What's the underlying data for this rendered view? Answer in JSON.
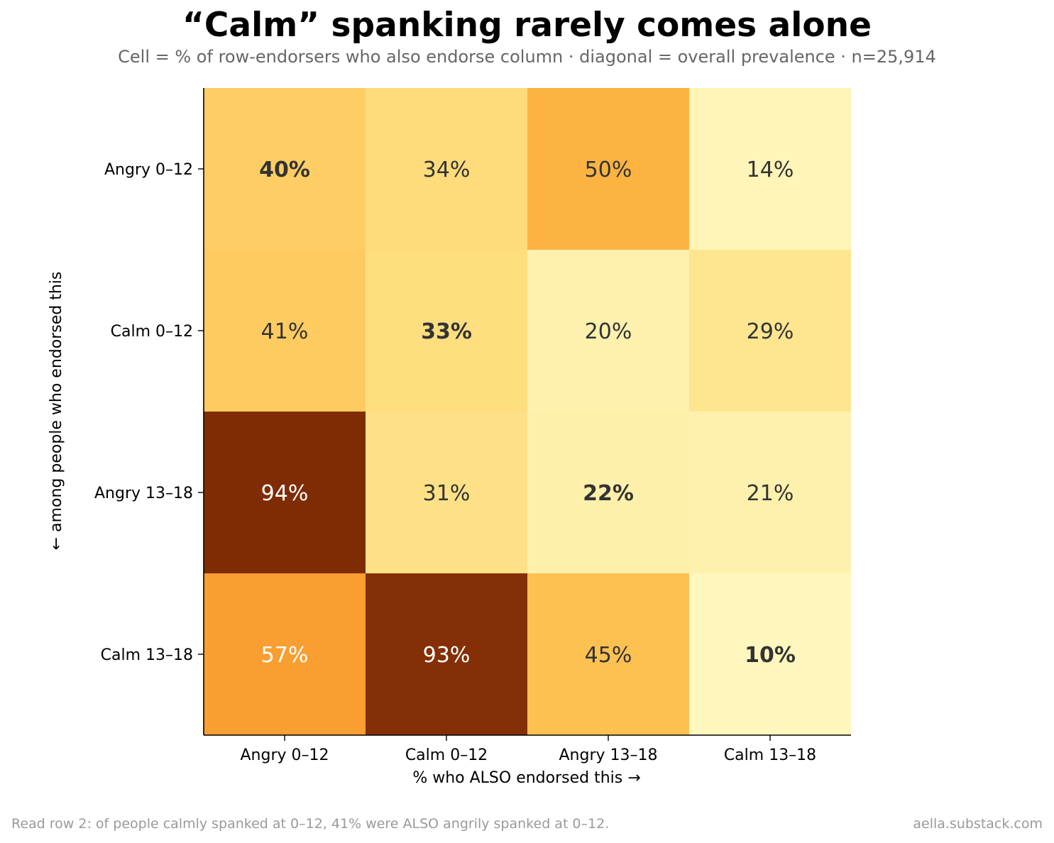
{
  "header": {
    "title": "“Calm” spanking rarely comes alone",
    "subtitle": "Cell = % of row-endorsers who also endorse column · diagonal = overall prevalence · n=25,914"
  },
  "footer": {
    "note": "Read row 2: of people calmly spanked at 0–12, 41% were ALSO angrily spanked at 0–12.",
    "credit": "aella.substack.com"
  },
  "chart_data": {
    "type": "heatmap",
    "title": "“Calm” spanking rarely comes alone",
    "subtitle": "Cell = % of row-endorsers who also endorse column · diagonal = overall prevalence · n=25,914",
    "xlabel": "% who ALSO endorsed this →",
    "ylabel": "← among people who endorsed this",
    "x_categories": [
      "Angry 0–12",
      "Calm 0–12",
      "Angry 13–18",
      "Calm 13–18"
    ],
    "y_categories": [
      "Angry 0–12",
      "Calm 0–12",
      "Angry 13–18",
      "Calm 13–18"
    ],
    "values": [
      [
        40,
        34,
        50,
        14
      ],
      [
        41,
        33,
        20,
        29
      ],
      [
        94,
        31,
        22,
        21
      ],
      [
        57,
        93,
        45,
        10
      ]
    ],
    "labels": [
      [
        "40%",
        "34%",
        "50%",
        "14%"
      ],
      [
        "41%",
        "33%",
        "20%",
        "29%"
      ],
      [
        "94%",
        "31%",
        "22%",
        "21%"
      ],
      [
        "57%",
        "93%",
        "45%",
        "10%"
      ]
    ],
    "diagonal_bold": true,
    "value_unit": "%",
    "colormap": "YlOrBr",
    "colors": {
      "text_dark": "#333333",
      "text_light": "#ffffff"
    },
    "grid": false
  }
}
